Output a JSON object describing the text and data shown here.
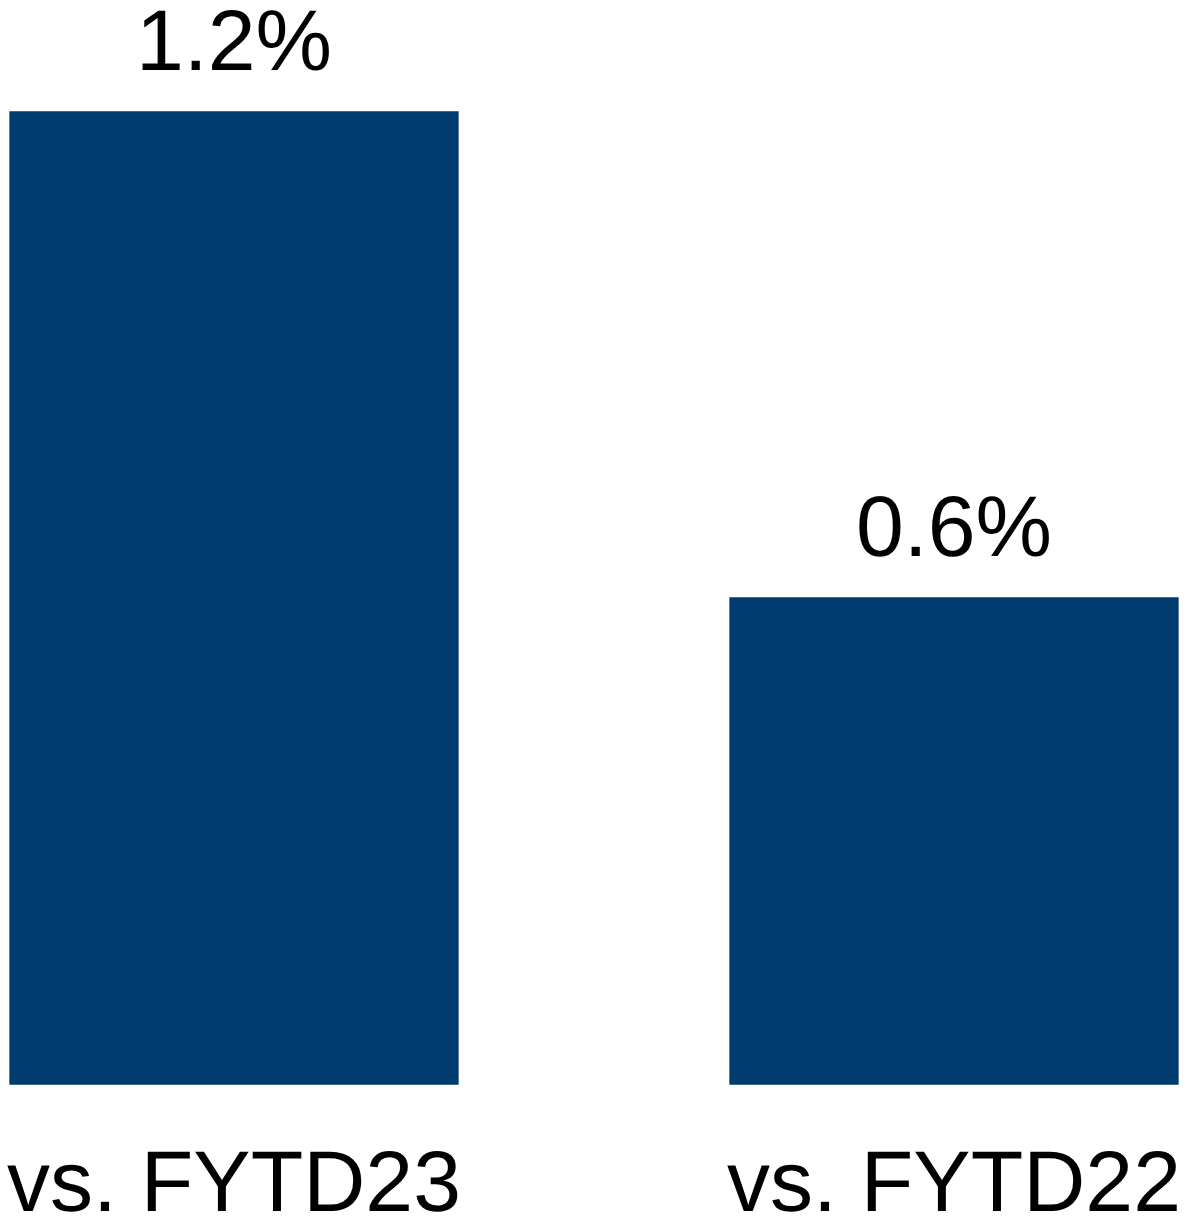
{
  "chart_data": {
    "type": "bar",
    "categories": [
      "vs. FYTD23",
      "vs. FYTD22"
    ],
    "values": [
      1.2,
      0.6
    ],
    "value_labels": [
      "1.2%",
      "0.6%"
    ],
    "color": "#013a6f",
    "ylim": [
      0,
      1.2
    ],
    "tick_labels": "x"
  }
}
